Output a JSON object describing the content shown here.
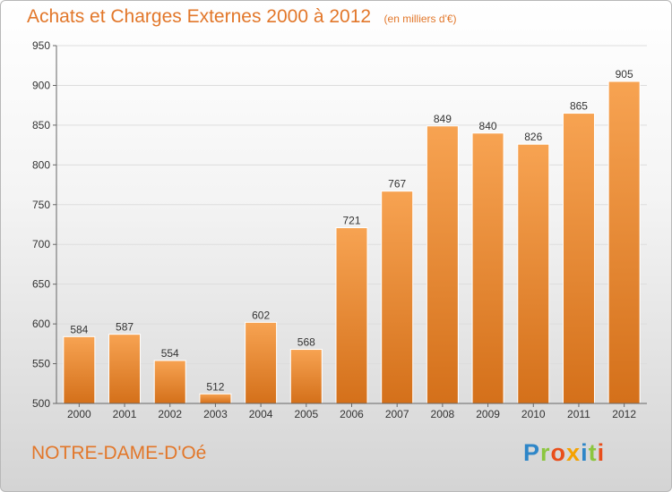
{
  "header": {
    "title": "Achats et Charges Externes 2000 à 2012",
    "subtitle": "(en milliers d'€)"
  },
  "footer": {
    "commune": "NOTRE-DAME-D'Oé",
    "logo_letters": [
      {
        "char": "P",
        "color": "#2e86c8"
      },
      {
        "char": "r",
        "color": "#8cc63f"
      },
      {
        "char": "o",
        "color": "#e94e1b"
      },
      {
        "char": "x",
        "color": "#f5a200"
      },
      {
        "char": "i",
        "color": "#2e86c8"
      },
      {
        "char": "t",
        "color": "#8cc63f"
      },
      {
        "char": "i",
        "color": "#e94e1b"
      }
    ]
  },
  "chart_data": {
    "type": "bar",
    "categories": [
      "2000",
      "2001",
      "2002",
      "2003",
      "2004",
      "2005",
      "2006",
      "2007",
      "2008",
      "2009",
      "2010",
      "2011",
      "2012"
    ],
    "values": [
      584,
      587,
      554,
      512,
      602,
      568,
      721,
      767,
      849,
      840,
      826,
      865,
      905
    ],
    "title": "Achats et Charges Externes 2000 à 2012",
    "subtitle": "(en milliers d'€)",
    "ylim": [
      500,
      950
    ],
    "yticks": [
      500,
      550,
      600,
      650,
      700,
      750,
      800,
      850,
      900,
      950
    ],
    "grid": true,
    "legend": "none",
    "colors": {
      "bar_top": "#f7a352",
      "bar_bottom": "#d4701a",
      "text": "#e2772a"
    }
  }
}
